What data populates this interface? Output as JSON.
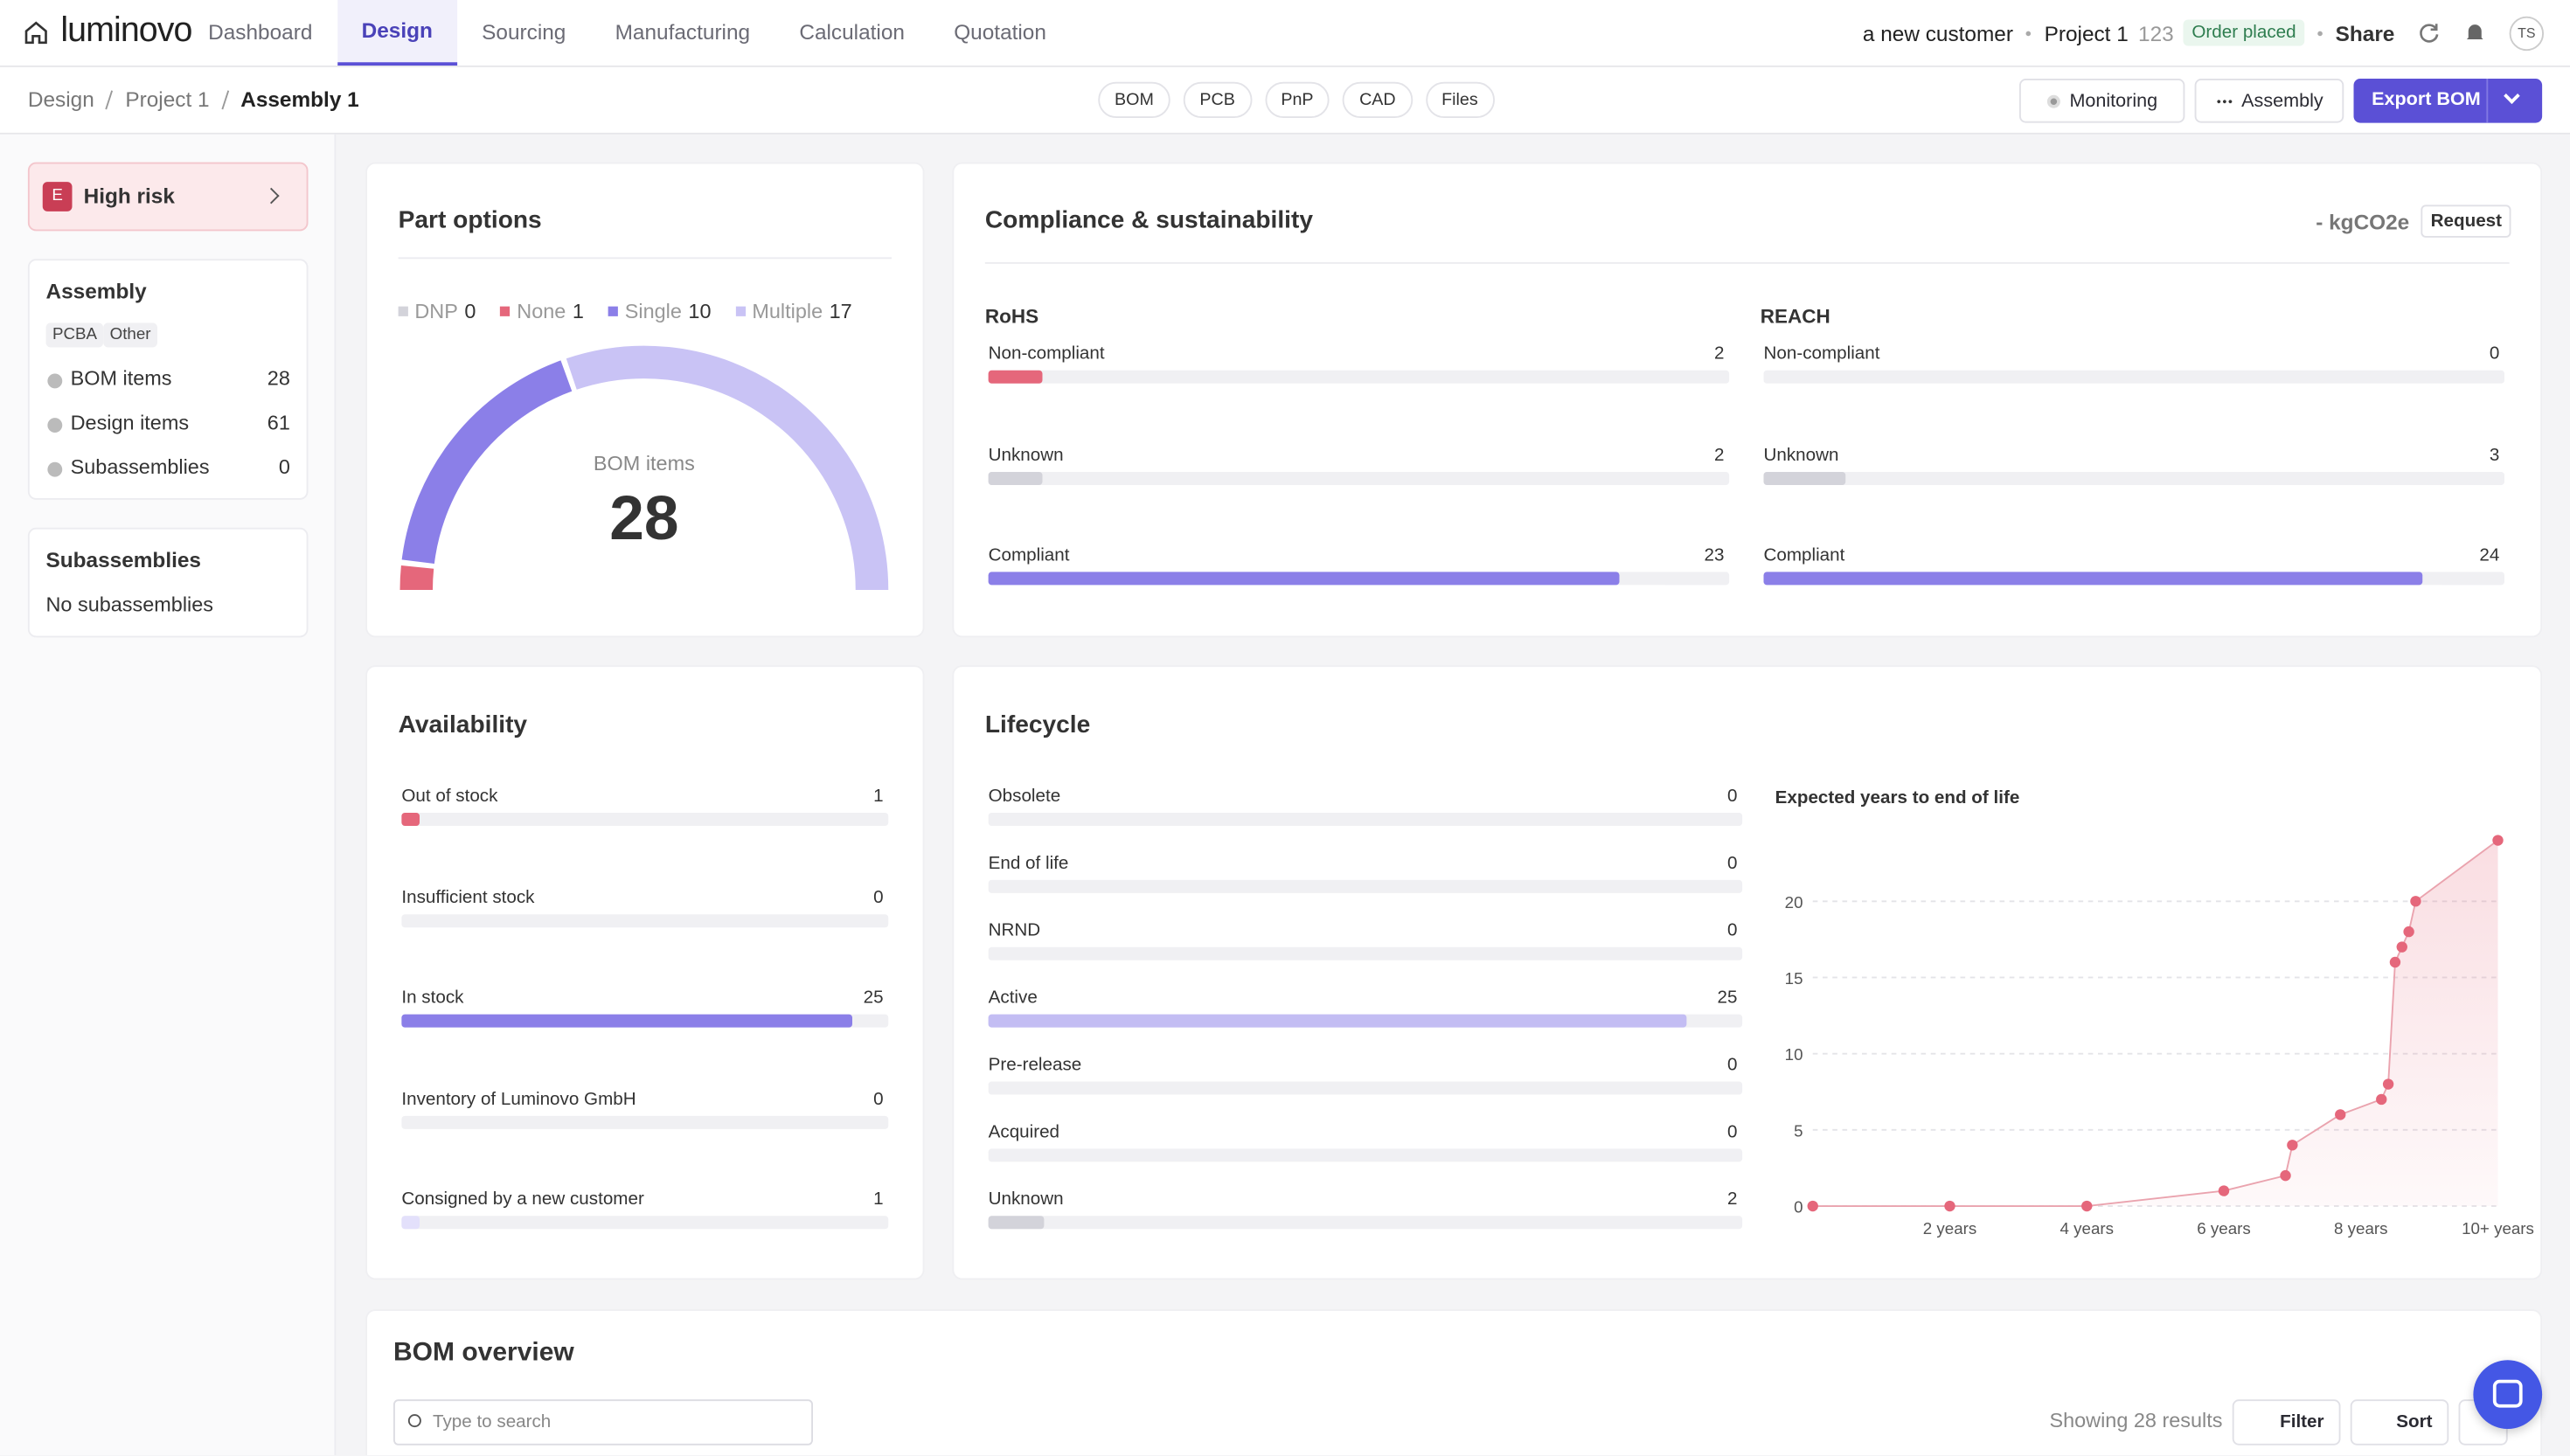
{
  "nav": {
    "logo": "luminovo",
    "tabs": [
      "Dashboard",
      "Design",
      "Sourcing",
      "Manufacturing",
      "Calculation",
      "Quotation"
    ],
    "customer": "a new customer",
    "project": "Project 1",
    "project_number": "123",
    "status": "Order placed",
    "share": "Share",
    "avatar": "TS"
  },
  "toolbar": {
    "breadcrumb": [
      "Design",
      "Project 1",
      "Assembly 1"
    ],
    "file_tabs": [
      "BOM",
      "PCB",
      "PnP",
      "CAD",
      "Files"
    ],
    "monitoring": "Monitoring",
    "assembly": "Assembly",
    "export": "Export BOM"
  },
  "sidebar": {
    "risk_grade": "E",
    "risk": "High risk",
    "assembly": {
      "title": "Assembly",
      "tags": [
        "PCBA",
        "Other"
      ],
      "rows": [
        {
          "label": "BOM items",
          "value": 28
        },
        {
          "label": "Design items",
          "value": 61
        },
        {
          "label": "Subassemblies",
          "value": 0
        }
      ]
    },
    "subassemblies": {
      "title": "Subassemblies",
      "text": "No subassemblies"
    }
  },
  "chart_data": [
    {
      "type": "gauge",
      "title": "Part options",
      "categories": [
        "DNP",
        "None",
        "Single",
        "Multiple"
      ],
      "values": [
        0,
        1,
        10,
        17
      ],
      "colors": [
        "#d3d3da",
        "#e5677b",
        "#8b7fe8",
        "#c9c3f5"
      ],
      "center_label": "BOM items",
      "center_value": 28
    },
    {
      "type": "progress",
      "title": "Compliance & sustainability",
      "co2": "- kgCO2e",
      "action": "Request",
      "groups": [
        {
          "title": "RoHS",
          "categories": [
            "Non-compliant",
            "Unknown",
            "Compliant"
          ],
          "values": [
            2,
            2,
            23
          ],
          "colors": [
            "#e5677b",
            "#d3d3da",
            "#8b7fe8"
          ]
        },
        {
          "title": "REACH",
          "categories": [
            "Non-compliant",
            "Unknown",
            "Compliant"
          ],
          "values": [
            0,
            3,
            24
          ],
          "colors": [
            "#e5677b",
            "#d3d3da",
            "#8b7fe8"
          ]
        }
      ]
    },
    {
      "type": "progress",
      "title": "Availability",
      "categories": [
        "Out of stock",
        "Insufficient stock",
        "In stock",
        "Inventory of Luminovo GmbH",
        "Consigned by a new customer"
      ],
      "values": [
        1,
        0,
        25,
        0,
        1
      ],
      "colors": [
        "#e5677b",
        "#f5c16c",
        "#8b7fe8",
        "#8b7fe8",
        "#e3e0fb"
      ]
    },
    {
      "type": "progress",
      "title": "Lifecycle",
      "categories": [
        "Obsolete",
        "End of life",
        "NRND",
        "Active",
        "Pre-release",
        "Acquired",
        "Unknown"
      ],
      "values": [
        0,
        0,
        0,
        25,
        0,
        0,
        2
      ],
      "colors": [
        "#e5677b",
        "#e5677b",
        "#f5c16c",
        "#c3bdf3",
        "#c3bdf3",
        "#c3bdf3",
        "#d3d3da"
      ]
    },
    {
      "type": "line",
      "title": "Expected years to end of life",
      "x": [
        0,
        2,
        4,
        6,
        6.9,
        7,
        7.7,
        8.3,
        8.4,
        8.5,
        8.6,
        8.7,
        8.8,
        10
      ],
      "values": [
        0,
        0,
        0,
        1,
        2,
        4,
        6,
        7,
        8,
        16,
        17,
        18,
        20,
        24
      ],
      "color": "#e5677b",
      "xlim": [
        0,
        10
      ],
      "xticks": [
        {
          "value": 2,
          "label": "2 years"
        },
        {
          "value": 4,
          "label": "4 years"
        },
        {
          "value": 6,
          "label": "6 years"
        },
        {
          "value": 8,
          "label": "8 years"
        },
        {
          "value": 10,
          "label": "10+ years"
        }
      ],
      "ylim": [
        0,
        25
      ],
      "yticks": [
        0,
        5,
        10,
        15,
        20
      ],
      "grid": true
    }
  ],
  "bom_overview": {
    "title": "BOM overview",
    "search_placeholder": "Type to search",
    "results": "Showing 28 results",
    "filter": "Filter",
    "sort": "Sort"
  }
}
